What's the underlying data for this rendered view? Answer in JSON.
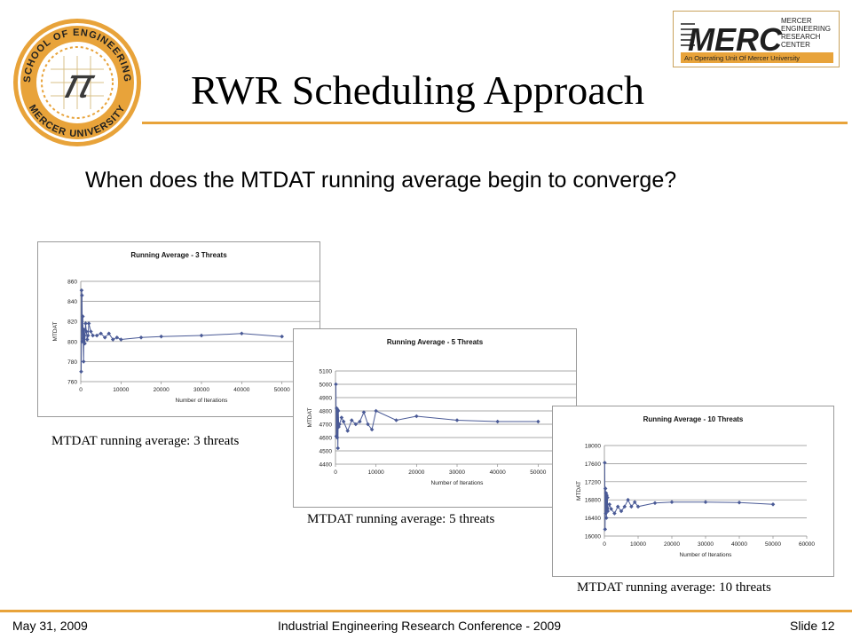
{
  "slide": {
    "title": "RWR Scheduling Approach",
    "question": "When does the MTDAT running average begin to converge?"
  },
  "logos": {
    "seal_ring_text_top": "SCHOOL OF ENGINEERING",
    "seal_ring_text_bottom": "MERCER UNIVERSITY",
    "seal_symbol": "𝜋",
    "merc_word": "MERC",
    "merc_lines": [
      "MERCER",
      "ENGINEERING",
      "RESEARCH",
      "CENTER"
    ],
    "merc_tagline": "An Operating Unit Of Mercer University",
    "accent_color": "#e8a33a",
    "merc_color": "#1f1f1f"
  },
  "captions": {
    "chart1": "MTDAT running average: 3 threats",
    "chart2": "MTDAT running average: 5 threats",
    "chart3": "MTDAT running average: 10 threats"
  },
  "footer": {
    "date": "May 31, 2009",
    "conference": "Industrial Engineering Research Conference - 2009",
    "slide_number": "Slide 12"
  },
  "chart_data": [
    {
      "type": "line",
      "title": "Running Average - 3 Threats",
      "xlabel": "Number of Iterations",
      "ylabel": "MTDAT",
      "xlim": [
        0,
        60000
      ],
      "ylim": [
        760,
        860
      ],
      "xticks": [
        0,
        10000,
        20000,
        30000,
        40000,
        50000,
        60000
      ],
      "yticks": [
        760,
        780,
        800,
        820,
        840,
        860
      ],
      "grid": "horizontal",
      "series": [
        {
          "x": [
            100,
            200,
            300,
            400,
            500,
            600,
            700,
            800,
            900,
            1000,
            1200,
            1400,
            1600,
            1800,
            2000,
            2500,
            3000,
            4000,
            5000,
            6000,
            7000,
            8000,
            9000,
            10000,
            15000,
            20000,
            30000,
            40000,
            50000
          ],
          "y": [
            770,
            851,
            846,
            800,
            825,
            803,
            780,
            812,
            806,
            798,
            818,
            810,
            802,
            806,
            818,
            810,
            806,
            806,
            808,
            804,
            808,
            802,
            804,
            802,
            804,
            805,
            806,
            808,
            805
          ]
        }
      ]
    },
    {
      "type": "line",
      "title": "Running Average - 5 Threats",
      "xlabel": "Number of Iterations",
      "ylabel": "MTDAT",
      "xlim": [
        0,
        60000
      ],
      "ylim": [
        4400,
        5100
      ],
      "xticks": [
        0,
        10000,
        20000,
        30000,
        40000,
        50000,
        60000
      ],
      "yticks": [
        4400,
        4500,
        4600,
        4700,
        4800,
        4900,
        5000,
        5100
      ],
      "grid": "horizontal",
      "series": [
        {
          "x": [
            100,
            200,
            300,
            400,
            500,
            600,
            700,
            800,
            1000,
            1500,
            2000,
            3000,
            4000,
            5000,
            6000,
            7000,
            8000,
            9000,
            10000,
            15000,
            20000,
            30000,
            40000,
            50000
          ],
          "y": [
            5000,
            4610,
            4820,
            4600,
            4810,
            4520,
            4800,
            4680,
            4700,
            4750,
            4720,
            4650,
            4730,
            4700,
            4720,
            4790,
            4700,
            4660,
            4800,
            4730,
            4760,
            4730,
            4720,
            4720
          ]
        }
      ]
    },
    {
      "type": "line",
      "title": "Running Average - 10 Threats",
      "xlabel": "Number of Iterations",
      "ylabel": "MTDAT",
      "xlim": [
        0,
        60000
      ],
      "ylim": [
        16000,
        18000
      ],
      "xticks": [
        0,
        10000,
        20000,
        30000,
        40000,
        50000,
        60000
      ],
      "yticks": [
        16000,
        16400,
        16800,
        17200,
        17600,
        18000
      ],
      "grid": "horizontal",
      "series": [
        {
          "x": [
            100,
            200,
            300,
            400,
            500,
            600,
            700,
            800,
            900,
            1000,
            1500,
            2000,
            3000,
            4000,
            5000,
            6000,
            7000,
            8000,
            9000,
            10000,
            15000,
            20000,
            30000,
            40000,
            50000
          ],
          "y": [
            17620,
            16150,
            17050,
            16500,
            16950,
            16400,
            16900,
            16600,
            16850,
            16550,
            16700,
            16600,
            16500,
            16650,
            16550,
            16650,
            16800,
            16650,
            16750,
            16650,
            16730,
            16750,
            16750,
            16740,
            16700
          ]
        }
      ]
    }
  ]
}
